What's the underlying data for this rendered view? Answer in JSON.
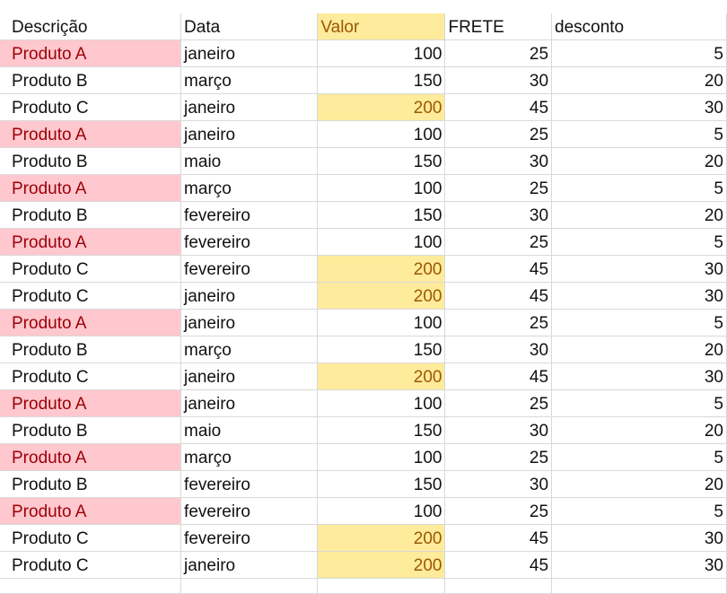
{
  "colors": {
    "duplicate_fill": "#ffc7ce",
    "duplicate_text": "#9c0006",
    "highlight_fill": "#ffeb9c",
    "highlight_text": "#9c5700",
    "gridline": "#d9d9d9"
  },
  "headers": {
    "descricao": "Descrição",
    "data": "Data",
    "valor": "Valor",
    "frete": "FRETE",
    "desconto": "desconto"
  },
  "rows": [
    {
      "descricao": "Produto A",
      "data": "janeiro",
      "valor": "100",
      "frete": "25",
      "desconto": "5"
    },
    {
      "descricao": "Produto B",
      "data": "março",
      "valor": "150",
      "frete": "30",
      "desconto": "20"
    },
    {
      "descricao": "Produto C",
      "data": "janeiro",
      "valor": "200",
      "frete": "45",
      "desconto": "30"
    },
    {
      "descricao": "Produto A",
      "data": "janeiro",
      "valor": "100",
      "frete": "25",
      "desconto": "5"
    },
    {
      "descricao": "Produto B",
      "data": "maio",
      "valor": "150",
      "frete": "30",
      "desconto": "20"
    },
    {
      "descricao": "Produto A",
      "data": "março",
      "valor": "100",
      "frete": "25",
      "desconto": "5"
    },
    {
      "descricao": "Produto B",
      "data": "fevereiro",
      "valor": "150",
      "frete": "30",
      "desconto": "20"
    },
    {
      "descricao": "Produto A",
      "data": "fevereiro",
      "valor": "100",
      "frete": "25",
      "desconto": "5"
    },
    {
      "descricao": "Produto C",
      "data": "fevereiro",
      "valor": "200",
      "frete": "45",
      "desconto": "30"
    },
    {
      "descricao": "Produto C",
      "data": "janeiro",
      "valor": "200",
      "frete": "45",
      "desconto": "30"
    },
    {
      "descricao": "Produto A",
      "data": "janeiro",
      "valor": "100",
      "frete": "25",
      "desconto": "5"
    },
    {
      "descricao": "Produto B",
      "data": "março",
      "valor": "150",
      "frete": "30",
      "desconto": "20"
    },
    {
      "descricao": "Produto C",
      "data": "janeiro",
      "valor": "200",
      "frete": "45",
      "desconto": "30"
    },
    {
      "descricao": "Produto A",
      "data": "janeiro",
      "valor": "100",
      "frete": "25",
      "desconto": "5"
    },
    {
      "descricao": "Produto B",
      "data": "maio",
      "valor": "150",
      "frete": "30",
      "desconto": "20"
    },
    {
      "descricao": "Produto A",
      "data": "março",
      "valor": "100",
      "frete": "25",
      "desconto": "5"
    },
    {
      "descricao": "Produto B",
      "data": "fevereiro",
      "valor": "150",
      "frete": "30",
      "desconto": "20"
    },
    {
      "descricao": "Produto A",
      "data": "fevereiro",
      "valor": "100",
      "frete": "25",
      "desconto": "5"
    },
    {
      "descricao": "Produto C",
      "data": "fevereiro",
      "valor": "200",
      "frete": "45",
      "desconto": "30"
    },
    {
      "descricao": "Produto C",
      "data": "janeiro",
      "valor": "200",
      "frete": "45",
      "desconto": "30"
    }
  ]
}
